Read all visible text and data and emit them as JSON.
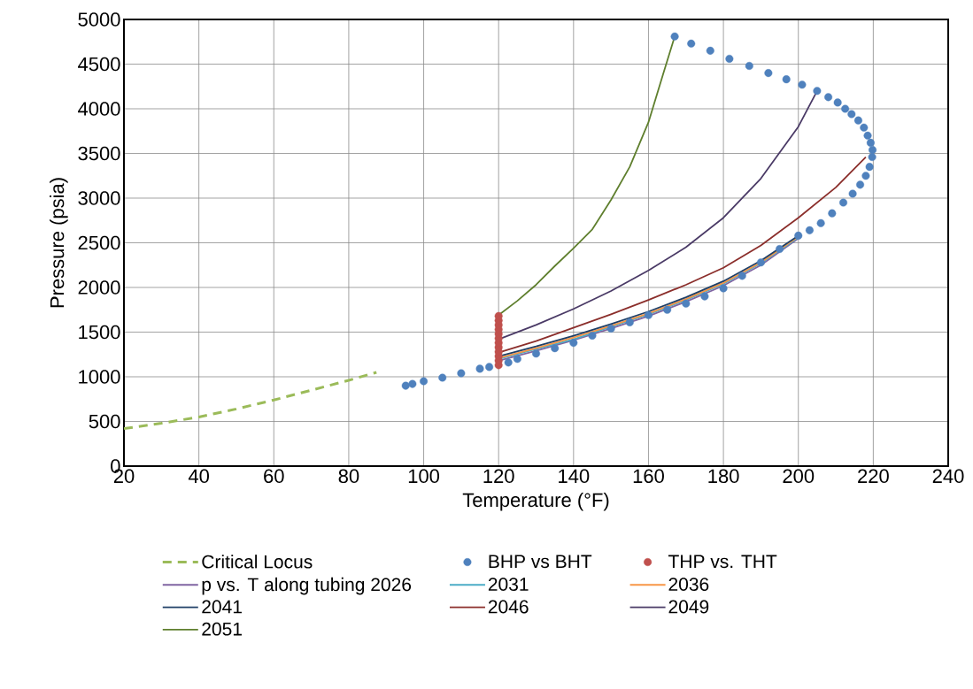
{
  "chart_data": {
    "type": "line",
    "xlabel": "Temperature (°F)",
    "ylabel": "Pressure (psia)",
    "xlim": [
      20,
      240
    ],
    "ylim": [
      0,
      5000
    ],
    "xticks": [
      20,
      40,
      60,
      80,
      100,
      120,
      140,
      160,
      180,
      200,
      220,
      240
    ],
    "yticks": [
      0,
      500,
      1000,
      1500,
      2000,
      2500,
      3000,
      3500,
      4000,
      4500,
      5000
    ],
    "grid": true,
    "legend": "bottom",
    "series": [
      {
        "name": "Critical Locus",
        "line_style": "dashed",
        "color": "#9bbb59",
        "x": [
          20,
          30,
          40,
          50,
          60,
          70,
          80,
          87.4
        ],
        "values": [
          420,
          480,
          550,
          640,
          740,
          850,
          960,
          1050
        ]
      },
      {
        "name": "BHP vs BHT",
        "type": "scatter",
        "color": "#4f81bd",
        "x": [
          95.2,
          97,
          100,
          105,
          110,
          115,
          117.5,
          122.6,
          125,
          130,
          135,
          140,
          145,
          150,
          155,
          160,
          165,
          170,
          175,
          180,
          185,
          190,
          195,
          200,
          203,
          206,
          209,
          212,
          214.5,
          216.5,
          218,
          219,
          219.7,
          219.8,
          219.3,
          218.5,
          217.5,
          216,
          214.2,
          212.5,
          210.5,
          208,
          205,
          201,
          196.8,
          192,
          186.9,
          181.6,
          176.5,
          171.4,
          167
        ],
        "values": [
          900,
          920,
          950,
          990,
          1040,
          1090,
          1110,
          1160,
          1200,
          1260,
          1320,
          1380,
          1460,
          1540,
          1610,
          1690,
          1750,
          1820,
          1900,
          1990,
          2130,
          2280,
          2430,
          2580,
          2640,
          2720,
          2830,
          2950,
          3050,
          3150,
          3250,
          3350,
          3460,
          3540,
          3620,
          3700,
          3790,
          3870,
          3940,
          4000,
          4070,
          4130,
          4200,
          4270,
          4330,
          4400,
          4480,
          4560,
          4650,
          4730,
          4810
        ]
      },
      {
        "name": "THP vs. THT",
        "type": "scatter",
        "color": "#c0504d",
        "x": [
          120,
          120,
          120,
          120,
          120,
          120,
          120,
          120,
          120,
          120,
          120,
          120
        ],
        "values": [
          1130,
          1180,
          1230,
          1280,
          1330,
          1380,
          1430,
          1480,
          1530,
          1580,
          1630,
          1680
        ]
      },
      {
        "name": "p vs. T along tubing 2026",
        "color": "#8064a2",
        "x": [
          120,
          130,
          140,
          150,
          160,
          170,
          180,
          190,
          200
        ],
        "values": [
          1180,
          1290,
          1410,
          1540,
          1680,
          1840,
          2020,
          2250,
          2550
        ]
      },
      {
        "name": "2031",
        "color": "#4bacc6",
        "x": [
          120,
          130,
          140,
          150,
          160,
          170,
          180,
          190,
          200
        ],
        "values": [
          1200,
          1310,
          1420,
          1560,
          1700,
          1860,
          2040,
          2270,
          2560
        ]
      },
      {
        "name": "2036",
        "color": "#f79646",
        "x": [
          120,
          130,
          140,
          150,
          160,
          170,
          180,
          190,
          200
        ],
        "values": [
          1210,
          1320,
          1440,
          1570,
          1710,
          1870,
          2050,
          2280,
          2570
        ]
      },
      {
        "name": "2041",
        "color": "#1f3f66",
        "x": [
          120,
          130,
          140,
          150,
          160,
          170,
          180,
          190,
          200
        ],
        "values": [
          1230,
          1340,
          1460,
          1590,
          1730,
          1890,
          2070,
          2300,
          2580
        ]
      },
      {
        "name": "2046",
        "color": "#8b2e2b",
        "x": [
          120,
          130,
          140,
          150,
          160,
          170,
          180,
          190,
          200,
          210,
          218
        ],
        "values": [
          1270,
          1400,
          1550,
          1700,
          1860,
          2030,
          2220,
          2470,
          2780,
          3120,
          3460
        ]
      },
      {
        "name": "2049",
        "color": "#4a3a66",
        "x": [
          120,
          130,
          140,
          150,
          160,
          170,
          180,
          190,
          200,
          205
        ],
        "values": [
          1420,
          1580,
          1760,
          1960,
          2190,
          2450,
          2780,
          3220,
          3800,
          4200
        ]
      },
      {
        "name": "2051",
        "color": "#5f7f2e",
        "x": [
          120,
          125,
          130,
          135,
          140,
          145,
          150,
          155,
          160,
          164,
          167
        ],
        "values": [
          1690,
          1850,
          2030,
          2240,
          2440,
          2650,
          2980,
          3350,
          3850,
          4400,
          4810
        ]
      }
    ]
  }
}
